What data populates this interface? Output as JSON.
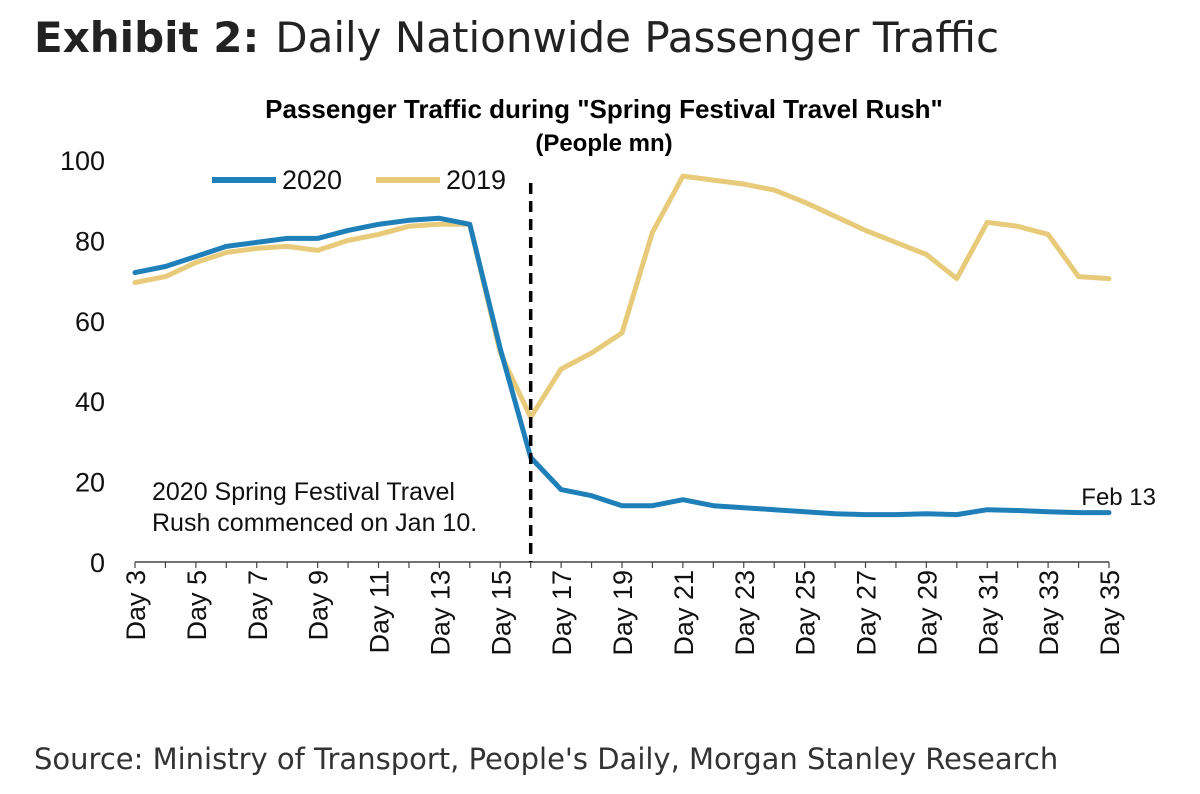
{
  "exhibit": {
    "label": "Exhibit 2:",
    "title": "Daily Nationwide Passenger Traffic"
  },
  "source": "Source: Ministry of Transport, People's Daily, Morgan Stanley Research",
  "colors": {
    "s2020": "#1f7fb8",
    "s2019": "#e8cb7a"
  },
  "chart_data": {
    "type": "line",
    "title": "Passenger Traffic during \"Spring Festival Travel Rush\"",
    "subtitle": "(People mn)",
    "xlabel": "",
    "ylabel": "",
    "ylim": [
      0,
      100
    ],
    "yticks": [
      0,
      20,
      40,
      60,
      80,
      100
    ],
    "grid": false,
    "legend": "top-left",
    "x": [
      3,
      4,
      5,
      6,
      7,
      8,
      9,
      10,
      11,
      12,
      13,
      14,
      15,
      16,
      17,
      18,
      19,
      20,
      21,
      22,
      23,
      24,
      25,
      26,
      27,
      28,
      29,
      30,
      31,
      32,
      33,
      34,
      35
    ],
    "xtick_labels": [
      "Day 3",
      "Day 5",
      "Day 7",
      "Day 9",
      "Day 11",
      "Day 13",
      "Day 15",
      "Day 17",
      "Day 19",
      "Day 21",
      "Day 23",
      "Day 25",
      "Day 27",
      "Day 29",
      "Day 31",
      "Day 33",
      "Day 35"
    ],
    "series": [
      {
        "name": "2020",
        "color": "#1f7fb8",
        "values": [
          72,
          73.5,
          76,
          78.5,
          79.5,
          80.5,
          80.5,
          82.5,
          84,
          85,
          85.5,
          84,
          53,
          26,
          18,
          16.5,
          14,
          14,
          15.5,
          14,
          13.5,
          13,
          12.5,
          12,
          11.8,
          11.8,
          12,
          11.8,
          13,
          12.8,
          12.5,
          12.3,
          12.3
        ]
      },
      {
        "name": "2019",
        "color": "#e8cb7a",
        "values": [
          69.5,
          71,
          74.5,
          77,
          78,
          78.5,
          77.5,
          80,
          81.5,
          83.5,
          84,
          84,
          52,
          36,
          48,
          52,
          57,
          82,
          96,
          95,
          94,
          92.5,
          89.5,
          86,
          82.5,
          79.5,
          76.5,
          70.5,
          84.5,
          83.5,
          81.5,
          71,
          70.5
        ]
      }
    ],
    "annotations": [
      {
        "text": "2020 Spring Festival Travel Rush commenced on Jan 10.",
        "lines": [
          "2020 Spring Festival Travel",
          "Rush commenced on Jan 10."
        ],
        "x": 16
      },
      {
        "text": "Feb 13",
        "x": 35
      }
    ],
    "marker_line_x": 16
  }
}
